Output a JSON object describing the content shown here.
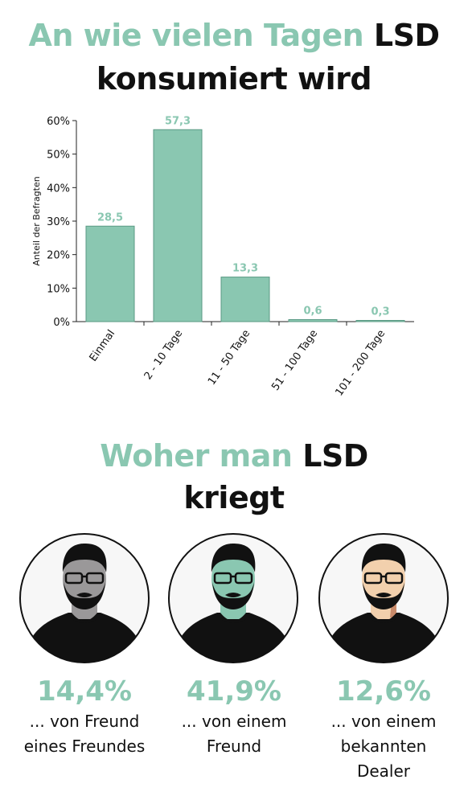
{
  "section1": {
    "title_green": "An wie vielen Tagen",
    "title_dark": "LSD",
    "title_line2": "konsumiert wird"
  },
  "chart_data": {
    "type": "bar",
    "categories": [
      "Einmal",
      "2 - 10 Tage",
      "11 - 50 Tage",
      "51 - 100 Tage",
      "101 - 200 Tage"
    ],
    "values": [
      28.5,
      57.3,
      13.3,
      0.6,
      0.3
    ],
    "value_labels": [
      "28,5",
      "57,3",
      "13,3",
      "0,6",
      "0,3"
    ],
    "ylabel": "Anteil der Befragten",
    "ylim": [
      0,
      60
    ],
    "yticks": [
      "0%",
      "10%",
      "20%",
      "30%",
      "40%",
      "50%",
      "60%"
    ],
    "bar_color": "#8ac7b1",
    "grid": false
  },
  "section2": {
    "title_green": "Woher man",
    "title_dark": "LSD",
    "title_line2": "kriegt"
  },
  "sources": [
    {
      "percent": "14,4%",
      "line1": "... von Freund",
      "line2": "eines Freundes",
      "line3": "",
      "face_color": "#9a9899"
    },
    {
      "percent": "41,9%",
      "line1": "... von einem",
      "line2": "Freund",
      "line3": "",
      "face_color": "#8ac7b1"
    },
    {
      "percent": "12,6%",
      "line1": "... von einem",
      "line2": "bekannten",
      "line3": "Dealer",
      "face_color": "#f2d0ad"
    }
  ],
  "colors": {
    "accent": "#8ac7b1",
    "text": "#111111"
  }
}
